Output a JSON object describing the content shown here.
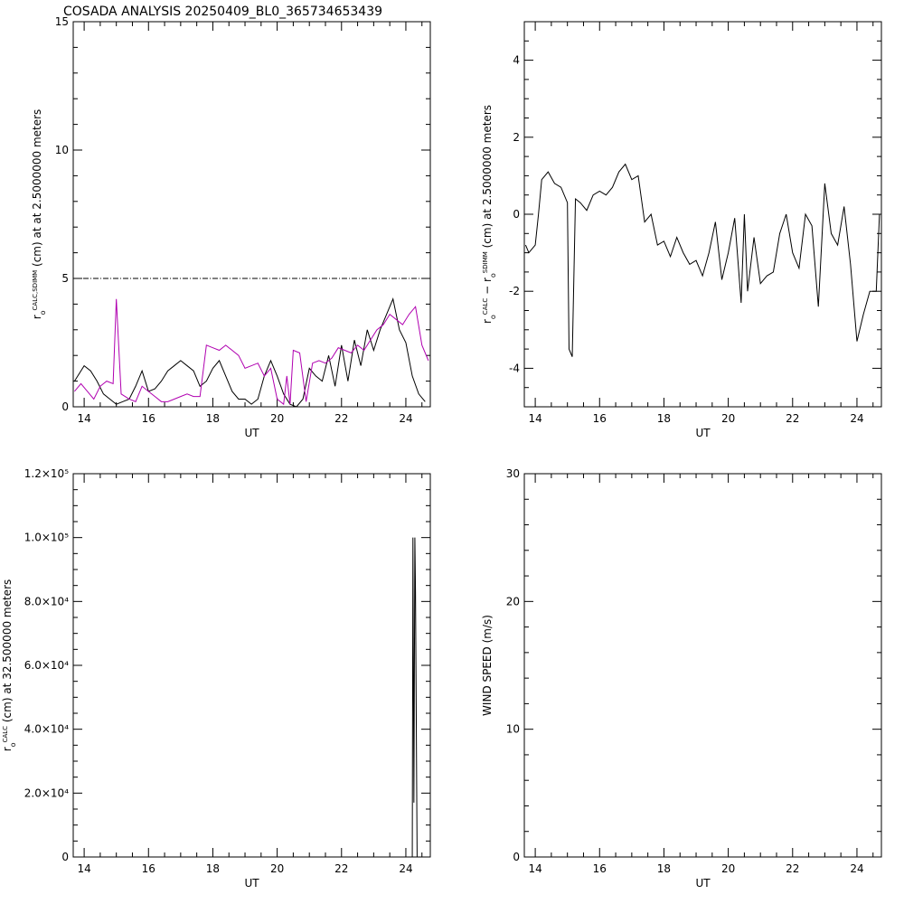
{
  "chart_data": [
    {
      "type": "line",
      "title": "COSADA ANALYSIS 20250409_BL0_365734653439",
      "xlabel": "UT",
      "ylabel": [
        {
          "text": "r"
        },
        {
          "text": "o",
          "pos": "sub"
        },
        {
          "text": "CALC,SDIMM",
          "pos": "sup"
        },
        {
          "text": " (cm) at  at 2.5000000 meters"
        }
      ],
      "xlim": [
        13.66,
        24.76
      ],
      "xticks": [
        14,
        16,
        18,
        20,
        22,
        24
      ],
      "xminor": 4,
      "ylim": [
        0,
        15
      ],
      "yticks": [
        0,
        5,
        10,
        15
      ],
      "yminor": 5,
      "hline": 5,
      "series": [
        {
          "color": "#000000",
          "x": [
            13.7,
            14.0,
            14.2,
            14.4,
            14.6,
            14.8,
            15.0,
            15.2,
            15.4,
            15.6,
            15.8,
            16.0,
            16.2,
            16.4,
            16.6,
            16.8,
            17.0,
            17.2,
            17.4,
            17.6,
            17.8,
            18.0,
            18.2,
            18.4,
            18.6,
            18.8,
            19.0,
            19.2,
            19.4,
            19.6,
            19.8,
            20.0,
            20.2,
            20.4,
            20.6,
            20.8,
            21.0,
            21.2,
            21.4,
            21.6,
            21.8,
            22.0,
            22.2,
            22.4,
            22.6,
            22.8,
            23.0,
            23.2,
            23.4,
            23.6,
            23.8,
            24.0,
            24.2,
            24.4,
            24.6
          ],
          "values": [
            1.0,
            1.6,
            1.4,
            1.0,
            0.5,
            0.3,
            0.1,
            0.2,
            0.3,
            0.8,
            1.4,
            0.6,
            0.7,
            1.0,
            1.4,
            1.6,
            1.8,
            1.6,
            1.4,
            0.8,
            1.0,
            1.5,
            1.8,
            1.2,
            0.6,
            0.3,
            0.3,
            0.1,
            0.3,
            1.2,
            1.8,
            1.2,
            0.5,
            0.1,
            0.0,
            0.3,
            1.5,
            1.2,
            1.0,
            2.0,
            0.8,
            2.4,
            1.0,
            2.6,
            1.6,
            3.0,
            2.2,
            3.0,
            3.6,
            4.2,
            3.0,
            2.5,
            1.2,
            0.5,
            0.2
          ]
        },
        {
          "color": "#b000b0",
          "x": [
            13.7,
            13.9,
            14.1,
            14.3,
            14.5,
            14.7,
            14.9,
            15.0,
            15.15,
            15.4,
            15.6,
            15.8,
            16.0,
            16.2,
            16.4,
            16.6,
            16.8,
            17.0,
            17.2,
            17.4,
            17.6,
            17.8,
            18.0,
            18.2,
            18.4,
            18.6,
            18.8,
            19.0,
            19.2,
            19.4,
            19.6,
            19.8,
            20.0,
            20.2,
            20.3,
            20.4,
            20.5,
            20.7,
            20.9,
            21.1,
            21.3,
            21.5,
            21.7,
            21.9,
            22.1,
            22.3,
            22.5,
            22.7,
            22.9,
            23.1,
            23.3,
            23.5,
            23.7,
            23.9,
            24.1,
            24.3,
            24.5,
            24.7
          ],
          "values": [
            0.6,
            0.9,
            0.6,
            0.3,
            0.8,
            1.0,
            0.9,
            4.2,
            0.5,
            0.3,
            0.2,
            0.8,
            0.6,
            0.4,
            0.2,
            0.2,
            0.3,
            0.4,
            0.5,
            0.4,
            0.4,
            2.4,
            2.3,
            2.2,
            2.4,
            2.2,
            2.0,
            1.5,
            1.6,
            1.7,
            1.2,
            1.5,
            0.3,
            0.1,
            1.2,
            0.1,
            2.2,
            2.1,
            0.2,
            1.7,
            1.8,
            1.7,
            1.9,
            2.3,
            2.2,
            2.1,
            2.4,
            2.2,
            2.6,
            3.0,
            3.2,
            3.6,
            3.4,
            3.2,
            3.6,
            3.9,
            2.4,
            1.8
          ]
        }
      ]
    },
    {
      "type": "line",
      "xlabel": "UT",
      "ylabel": [
        {
          "text": "r"
        },
        {
          "text": "o",
          "pos": "sub"
        },
        {
          "text": "CALC",
          "pos": "sup"
        },
        {
          "text": " − r"
        },
        {
          "text": "o",
          "pos": "sub"
        },
        {
          "text": "SDIMM",
          "pos": "sup"
        },
        {
          "text": " (cm) at 2.5000000 meters"
        }
      ],
      "xlim": [
        13.66,
        24.76
      ],
      "xticks": [
        14,
        16,
        18,
        20,
        22,
        24
      ],
      "xminor": 4,
      "ylim": [
        -5,
        5
      ],
      "yticks": [
        -4,
        -2,
        0,
        2,
        4
      ],
      "yminor": 4,
      "series": [
        {
          "color": "#000000",
          "x": [
            13.7,
            13.8,
            14.0,
            14.1,
            14.2,
            14.4,
            14.6,
            14.8,
            15.0,
            15.05,
            15.15,
            15.25,
            15.4,
            15.6,
            15.8,
            16.0,
            16.2,
            16.4,
            16.6,
            16.8,
            17.0,
            17.2,
            17.4,
            17.6,
            17.8,
            18.0,
            18.2,
            18.4,
            18.6,
            18.8,
            19.0,
            19.2,
            19.4,
            19.6,
            19.8,
            20.0,
            20.2,
            20.4,
            20.5,
            20.6,
            20.8,
            21.0,
            21.2,
            21.4,
            21.6,
            21.8,
            22.0,
            22.2,
            22.4,
            22.6,
            22.8,
            23.0,
            23.2,
            23.4,
            23.6,
            23.8,
            24.0,
            24.2,
            24.4,
            24.6,
            24.7
          ],
          "values": [
            -0.8,
            -1.0,
            -0.8,
            0.0,
            0.9,
            1.1,
            0.8,
            0.7,
            0.3,
            -3.5,
            -3.7,
            0.4,
            0.3,
            0.1,
            0.5,
            0.6,
            0.5,
            0.7,
            1.1,
            1.3,
            0.9,
            1.0,
            -0.2,
            0.0,
            -0.8,
            -0.7,
            -1.1,
            -0.6,
            -1.0,
            -1.3,
            -1.2,
            -1.6,
            -1.0,
            -0.2,
            -1.7,
            -1.0,
            -0.1,
            -2.3,
            0.0,
            -2.0,
            -0.6,
            -1.8,
            -1.6,
            -1.5,
            -0.5,
            0.0,
            -1.0,
            -1.4,
            0.0,
            -0.3,
            -2.4,
            0.8,
            -0.5,
            -0.8,
            0.2,
            -1.3,
            -3.3,
            -2.6,
            -2.0,
            -2.0,
            0.0
          ]
        }
      ]
    },
    {
      "type": "line",
      "xlabel": "UT",
      "ylabel": [
        {
          "text": "r"
        },
        {
          "text": "o",
          "pos": "sub"
        },
        {
          "text": "CALC",
          "pos": "sup"
        },
        {
          "text": " (cm) at 32.500000 meters"
        }
      ],
      "xlim": [
        13.66,
        24.76
      ],
      "xticks": [
        14,
        16,
        18,
        20,
        22,
        24
      ],
      "xminor": 4,
      "ylim": [
        0,
        120000
      ],
      "yticks": [
        0,
        {
          "value": 20000,
          "label": "2.0×10⁴"
        },
        {
          "value": 40000,
          "label": "4.0×10⁴"
        },
        {
          "value": 60000,
          "label": "6.0×10⁴"
        },
        {
          "value": 80000,
          "label": "8.0×10⁴"
        },
        {
          "value": 100000,
          "label": "1.0×10⁵"
        },
        {
          "value": 120000,
          "label": "1.2×10⁵"
        }
      ],
      "yminor": 4,
      "series": [
        {
          "color": "#000000",
          "x": [
            24.05,
            24.1,
            24.15,
            24.2,
            24.22,
            24.25,
            24.28,
            24.3,
            24.35
          ],
          "values": [
            0,
            0,
            0,
            0,
            100000,
            17000,
            100000,
            83000,
            0
          ]
        }
      ]
    },
    {
      "type": "line",
      "xlabel": "UT",
      "ylabel": [
        {
          "text": "WIND SPEED (m/s)"
        }
      ],
      "xlim": [
        13.66,
        24.76
      ],
      "xticks": [
        14,
        16,
        18,
        20,
        22,
        24
      ],
      "xminor": 4,
      "ylim": [
        0,
        30
      ],
      "yticks": [
        0,
        10,
        20,
        30
      ],
      "yminor": 5,
      "series": []
    }
  ]
}
